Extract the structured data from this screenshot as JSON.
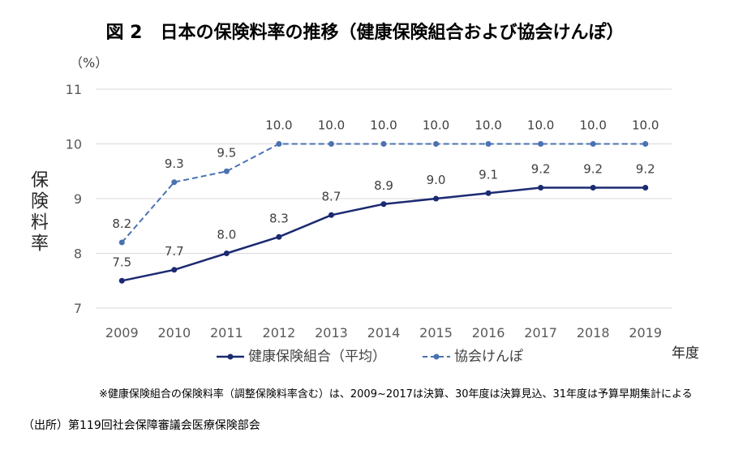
{
  "chart_data": {
    "type": "line",
    "title": "図 2　日本の保険料率の推移（健康保険組合および協会けんぽ）",
    "yunit": "（%）",
    "ylabel": "保険料率",
    "xlabel": "年度",
    "categories": [
      "2009",
      "2010",
      "2011",
      "2012",
      "2013",
      "2014",
      "2015",
      "2016",
      "2017",
      "2018",
      "2019"
    ],
    "ylim": [
      7,
      11
    ],
    "yticks": [
      7,
      8,
      9,
      10,
      11
    ],
    "grid": true,
    "legend": "bottom",
    "series": [
      {
        "name": "健康保険組合（平均）",
        "values": [
          7.5,
          7.7,
          8.0,
          8.3,
          8.7,
          8.9,
          9.0,
          9.1,
          9.2,
          9.2,
          9.2
        ],
        "data_labels": [
          "7.5",
          "7.7",
          "8.0",
          "8.3",
          "8.7",
          "8.9",
          "9.0",
          "9.1",
          "9.2",
          "9.2",
          "9.2"
        ],
        "color": "#1B2A72",
        "dashed": false
      },
      {
        "name": "協会けんぽ",
        "values": [
          8.2,
          9.3,
          9.5,
          10.0,
          10.0,
          10.0,
          10.0,
          10.0,
          10.0,
          10.0,
          10.0
        ],
        "data_labels": [
          "8.2",
          "9.3",
          "9.5",
          "10.0",
          "10.0",
          "10.0",
          "10.0",
          "10.0",
          "10.0",
          "10.0",
          "10.0"
        ],
        "color": "#4A72B2",
        "dashed": true
      }
    ]
  },
  "footnote": "※健康保険組合の保険料率（調整保険料率含む）は、2009~2017は決算、30年度は決算見込、31年度は予算早期集計による",
  "source": "（出所）第119回社会保障審議会医療保険部会"
}
